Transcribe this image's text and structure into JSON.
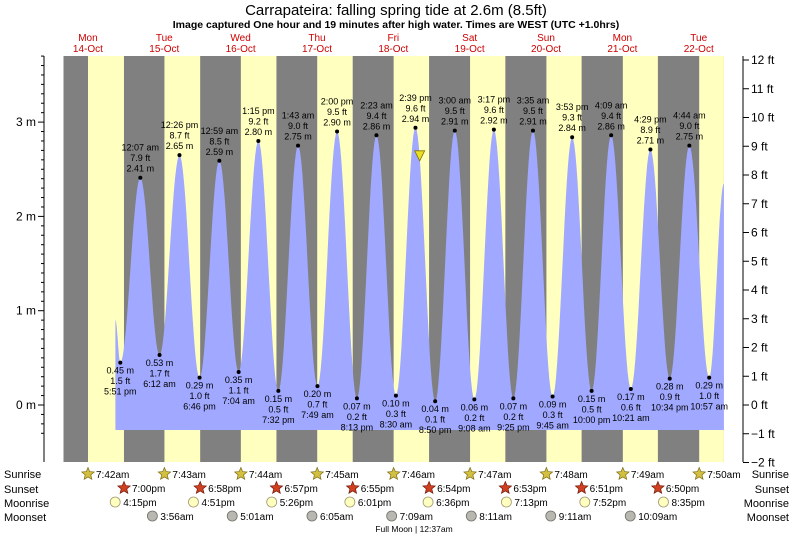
{
  "chart_data": {
    "type": "area",
    "title": "Carrapateira: falling  spring tide at 2.6m (8.5ft)",
    "subtitle": "Image captured One hour and 19 minutes after high water. Times are WEST (UTC +1.0hrs)",
    "xlabel": "",
    "ylabel": "",
    "y_left_unit": "m",
    "y_right_unit": "ft",
    "ylim_m": [
      -0.3,
      3.7
    ],
    "x_range_days": [
      0,
      8.65
    ],
    "grid": false,
    "days": [
      {
        "name": "Mon",
        "date": "14-Oct"
      },
      {
        "name": "Tue",
        "date": "15-Oct"
      },
      {
        "name": "Wed",
        "date": "16-Oct"
      },
      {
        "name": "Thu",
        "date": "17-Oct"
      },
      {
        "name": "Fri",
        "date": "18-Oct"
      },
      {
        "name": "Sat",
        "date": "19-Oct"
      },
      {
        "name": "Sun",
        "date": "20-Oct"
      },
      {
        "name": "Mon",
        "date": "21-Oct"
      },
      {
        "name": "Tue",
        "date": "22-Oct"
      }
    ],
    "left_ticks": [
      {
        "v": 0,
        "label": "0 m"
      },
      {
        "v": 1,
        "label": "1 m"
      },
      {
        "v": 2,
        "label": "2 m"
      },
      {
        "v": 3,
        "label": "3 m"
      }
    ],
    "right_ticks": [
      {
        "v": -2,
        "label": "−2 ft"
      },
      {
        "v": -1,
        "label": "−1 ft"
      },
      {
        "v": 0,
        "label": "0 ft"
      },
      {
        "v": 1,
        "label": "1 ft"
      },
      {
        "v": 2,
        "label": "2 ft"
      },
      {
        "v": 3,
        "label": "3 ft"
      },
      {
        "v": 4,
        "label": "4 ft"
      },
      {
        "v": 5,
        "label": "5 ft"
      },
      {
        "v": 6,
        "label": "6 ft"
      },
      {
        "v": 7,
        "label": "7 ft"
      },
      {
        "v": 8,
        "label": "8 ft"
      },
      {
        "v": 9,
        "label": "9 ft"
      },
      {
        "v": 10,
        "label": "10 ft"
      },
      {
        "v": 11,
        "label": "11 ft"
      },
      {
        "v": 12,
        "label": "12 ft"
      }
    ],
    "tides": [
      {
        "t": 0.744,
        "m": 0.45,
        "type": "low",
        "m_label": "0.45 m",
        "ft_label": "1.5 ft",
        "time_label": "5:51 pm"
      },
      {
        "t": 1.006,
        "m": 2.41,
        "type": "high",
        "m_label": "2.41 m",
        "ft_label": "7.9 ft",
        "time_label": "12:07 am"
      },
      {
        "t": 1.258,
        "m": 0.53,
        "type": "low",
        "m_label": "0.53 m",
        "ft_label": "1.7 ft",
        "time_label": "6:12 am"
      },
      {
        "t": 1.519,
        "m": 2.65,
        "type": "high",
        "m_label": "2.65 m",
        "ft_label": "8.7 ft",
        "time_label": "12:26 pm"
      },
      {
        "t": 1.782,
        "m": 0.29,
        "type": "low",
        "m_label": "0.29 m",
        "ft_label": "1.0 ft",
        "time_label": "6:46 pm"
      },
      {
        "t": 2.041,
        "m": 2.59,
        "type": "high",
        "m_label": "2.59 m",
        "ft_label": "8.5 ft",
        "time_label": "12:59 am"
      },
      {
        "t": 2.294,
        "m": 0.35,
        "type": "low",
        "m_label": "0.35 m",
        "ft_label": "1.1 ft",
        "time_label": "7:04 am"
      },
      {
        "t": 2.552,
        "m": 2.8,
        "type": "high",
        "m_label": "2.80 m",
        "ft_label": "9.2 ft",
        "time_label": "1:15 pm"
      },
      {
        "t": 2.814,
        "m": 0.15,
        "type": "low",
        "m_label": "0.15 m",
        "ft_label": "0.5 ft",
        "time_label": "7:32 pm"
      },
      {
        "t": 3.072,
        "m": 2.75,
        "type": "high",
        "m_label": "2.75 m",
        "ft_label": "9.0 ft",
        "time_label": "1:43 am"
      },
      {
        "t": 3.326,
        "m": 0.2,
        "type": "low",
        "m_label": "0.20 m",
        "ft_label": "0.7 ft",
        "time_label": "7:49 am"
      },
      {
        "t": 3.583,
        "m": 2.9,
        "type": "high",
        "m_label": "2.90 m",
        "ft_label": "9.5 ft",
        "time_label": "2:00 pm"
      },
      {
        "t": 3.843,
        "m": 0.07,
        "type": "low",
        "m_label": "0.07 m",
        "ft_label": "0.2 ft",
        "time_label": "8:13 pm"
      },
      {
        "t": 4.099,
        "m": 2.86,
        "type": "high",
        "m_label": "2.86 m",
        "ft_label": "9.4 ft",
        "time_label": "2:23 am"
      },
      {
        "t": 4.354,
        "m": 0.1,
        "type": "low",
        "m_label": "0.10 m",
        "ft_label": "0.3 ft",
        "time_label": "8:30 am"
      },
      {
        "t": 4.61,
        "m": 2.94,
        "type": "high",
        "m_label": "2.94 m",
        "ft_label": "9.6 ft",
        "time_label": "2:39 pm"
      },
      {
        "t": 4.868,
        "m": 0.04,
        "type": "low",
        "m_label": "0.04 m",
        "ft_label": "0.1 ft",
        "time_label": "8:50 pm"
      },
      {
        "t": 5.125,
        "m": 2.91,
        "type": "high",
        "m_label": "2.91 m",
        "ft_label": "9.5 ft",
        "time_label": "3:00 am"
      },
      {
        "t": 5.381,
        "m": 0.06,
        "type": "low",
        "m_label": "0.06 m",
        "ft_label": "0.2 ft",
        "time_label": "9:08 am"
      },
      {
        "t": 5.637,
        "m": 2.92,
        "type": "high",
        "m_label": "2.92 m",
        "ft_label": "9.6 ft",
        "time_label": "3:17 pm"
      },
      {
        "t": 5.892,
        "m": 0.07,
        "type": "low",
        "m_label": "0.07 m",
        "ft_label": "0.2 ft",
        "time_label": "9:25 pm"
      },
      {
        "t": 6.149,
        "m": 2.91,
        "type": "high",
        "m_label": "2.91 m",
        "ft_label": "9.5 ft",
        "time_label": "3:35 am"
      },
      {
        "t": 6.406,
        "m": 0.09,
        "type": "low",
        "m_label": "0.09 m",
        "ft_label": "0.3 ft",
        "time_label": "9:45 am"
      },
      {
        "t": 6.662,
        "m": 2.84,
        "type": "high",
        "m_label": "2.84 m",
        "ft_label": "9.3 ft",
        "time_label": "3:53 pm"
      },
      {
        "t": 6.917,
        "m": 0.15,
        "type": "low",
        "m_label": "0.15 m",
        "ft_label": "0.5 ft",
        "time_label": "10:00 pm"
      },
      {
        "t": 7.173,
        "m": 2.86,
        "type": "high",
        "m_label": "2.86 m",
        "ft_label": "9.4 ft",
        "time_label": "4:09 am"
      },
      {
        "t": 7.431,
        "m": 0.17,
        "type": "low",
        "m_label": "0.17 m",
        "ft_label": "0.6 ft",
        "time_label": "10:21 am"
      },
      {
        "t": 7.687,
        "m": 2.71,
        "type": "high",
        "m_label": "2.71 m",
        "ft_label": "8.9 ft",
        "time_label": "4:29 pm"
      },
      {
        "t": 7.94,
        "m": 0.28,
        "type": "low",
        "m_label": "0.28 m",
        "ft_label": "0.9 ft",
        "time_label": "10:34 pm"
      },
      {
        "t": 8.197,
        "m": 2.75,
        "type": "high",
        "m_label": "2.75 m",
        "ft_label": "9.0 ft",
        "time_label": "4:44 am"
      },
      {
        "t": 8.457,
        "m": 0.29,
        "type": "low",
        "m_label": "0.29 m",
        "ft_label": "1.0 ft",
        "time_label": "10:57 am"
      }
    ],
    "curve_start": {
      "t": 0.68,
      "m": 0.9
    },
    "curve_end": {
      "t": 8.65,
      "m": 2.35
    },
    "current_marker": {
      "t": 4.665,
      "m": 2.6
    },
    "daylight": [
      {
        "rise": 0.321,
        "set": 0.792
      },
      {
        "rise": 1.322,
        "set": 1.79
      },
      {
        "rise": 2.323,
        "set": 2.789
      },
      {
        "rise": 3.323,
        "set": 3.788
      },
      {
        "rise": 4.324,
        "set": 4.788
      },
      {
        "rise": 5.325,
        "set": 5.787
      },
      {
        "rise": 6.325,
        "set": 6.786
      },
      {
        "rise": 7.326,
        "set": 7.785
      },
      {
        "rise": 8.326,
        "set": 8.784
      }
    ],
    "row_labels": {
      "sunrise": "Sunrise",
      "sunset": "Sunset",
      "moonrise": "Moonrise",
      "moonset": "Moonset"
    },
    "sunrise": [
      {
        "t": 0.321,
        "label": "7:42am"
      },
      {
        "t": 1.322,
        "label": "7:43am"
      },
      {
        "t": 2.323,
        "label": "7:44am"
      },
      {
        "t": 3.323,
        "label": "7:45am"
      },
      {
        "t": 4.324,
        "label": "7:46am"
      },
      {
        "t": 5.325,
        "label": "7:47am"
      },
      {
        "t": 6.325,
        "label": "7:48am"
      },
      {
        "t": 7.326,
        "label": "7:49am"
      },
      {
        "t": 8.326,
        "label": "7:50am"
      }
    ],
    "sunset": [
      {
        "t": 0.792,
        "label": "7:00pm"
      },
      {
        "t": 1.79,
        "label": "6:58pm"
      },
      {
        "t": 2.789,
        "label": "6:57pm"
      },
      {
        "t": 3.788,
        "label": "6:55pm"
      },
      {
        "t": 4.788,
        "label": "6:54pm"
      },
      {
        "t": 5.787,
        "label": "6:53pm"
      },
      {
        "t": 6.786,
        "label": "6:51pm"
      },
      {
        "t": 7.785,
        "label": "6:50pm"
      }
    ],
    "moonrise": [
      {
        "t": 0.677,
        "label": "4:15pm"
      },
      {
        "t": 1.702,
        "label": "4:51pm"
      },
      {
        "t": 2.727,
        "label": "5:26pm"
      },
      {
        "t": 3.751,
        "label": "6:01pm"
      },
      {
        "t": 4.775,
        "label": "6:36pm"
      },
      {
        "t": 5.801,
        "label": "7:13pm"
      },
      {
        "t": 6.828,
        "label": "7:52pm"
      },
      {
        "t": 7.858,
        "label": "8:35pm"
      }
    ],
    "moonset": [
      {
        "t": 1.164,
        "label": "3:56am"
      },
      {
        "t": 2.21,
        "label": "5:01am"
      },
      {
        "t": 3.254,
        "label": "6:05am"
      },
      {
        "t": 4.298,
        "label": "7:09am"
      },
      {
        "t": 5.341,
        "label": "8:11am"
      },
      {
        "t": 6.382,
        "label": "9:11am"
      },
      {
        "t": 7.423,
        "label": "10:09am"
      }
    ],
    "moon_phase": "Full Moon | 12:37am",
    "colors": {
      "night": "#808080",
      "day": "#ffffc0",
      "water": "#a0a8ff",
      "day_label": "#cc0000",
      "sun_star": "#d4c040",
      "sunset_star": "#d04020",
      "moonrise_fill": "#ffffc0",
      "moonset_fill": "#b8b8b0",
      "marker": "#e8e020"
    }
  }
}
